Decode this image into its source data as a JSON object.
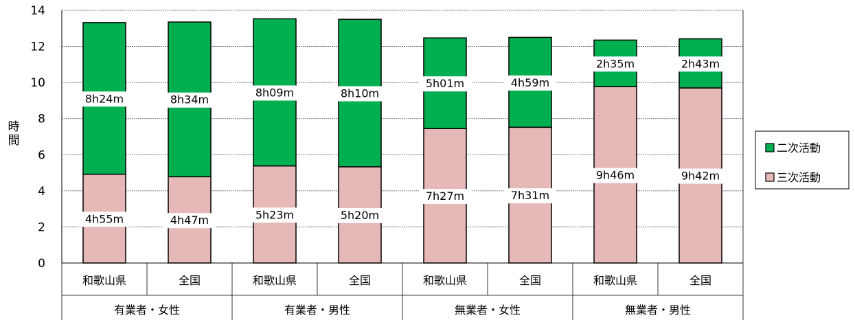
{
  "chart_data": {
    "type": "bar",
    "stacked": true,
    "ylabel": "時間",
    "ylim": [
      0,
      14
    ],
    "yticks": [
      0,
      2,
      4,
      6,
      8,
      10,
      12,
      14
    ],
    "grid": true,
    "legend_position": "right",
    "categories": [
      "和歌山県",
      "全国",
      "和歌山県",
      "全国",
      "和歌山県",
      "全国",
      "和歌山県",
      "全国"
    ],
    "groups": [
      "有業者・女性",
      "有業者・男性",
      "無業者・女性",
      "無業者・男性"
    ],
    "series": [
      {
        "name": "三次活動",
        "color": "#e6b8b7",
        "values": [
          4.92,
          4.78,
          5.38,
          5.33,
          7.45,
          7.52,
          9.77,
          9.7
        ],
        "labels": [
          "4h55m",
          "4h47m",
          "5h23m",
          "5h20m",
          "7h27m",
          "7h31m",
          "9h46m",
          "9h42m"
        ]
      },
      {
        "name": "二次活動",
        "color": "#00b050",
        "values": [
          8.4,
          8.57,
          8.15,
          8.17,
          5.02,
          4.98,
          2.58,
          2.72
        ],
        "labels": [
          "8h24m",
          "8h34m",
          "8h09m",
          "8h10m",
          "5h01m",
          "4h59m",
          "2h35m",
          "2h43m"
        ]
      }
    ],
    "legend": [
      "二次活動",
      "三次活動"
    ]
  }
}
